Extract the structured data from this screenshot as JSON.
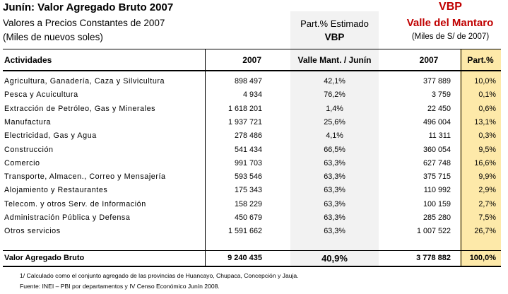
{
  "title": "Junín: Valor Agregado Bruto 2007",
  "subtitle1": "Valores a Precios Constantes de 2007",
  "subtitle2": "(Miles de nuevos soles)",
  "part_est_line1": "Part.% Estimado",
  "part_est_line2": "VBP",
  "vbp_title": "VBP",
  "vbp_region": "Valle del Mantaro",
  "vbp_units": "(Miles de S/ de 2007)",
  "table": {
    "col_actividades": "Actividades",
    "col_2007": "2007",
    "col_valle": "Valle Mant. / Junín",
    "col_2007b": "2007",
    "col_part": "Part.%",
    "rows": [
      {
        "act": "Agricultura, Ganadería, Caza y Silvicultura",
        "v2007": "898 497",
        "pct": "42,1%",
        "vbp": "377 889",
        "part": "10,0%"
      },
      {
        "act": "Pesca y Acuicultura",
        "v2007": "4 934",
        "pct": "76,2%",
        "vbp": "3 759",
        "part": "0,1%"
      },
      {
        "act": "Extracción de Petróleo, Gas y Minerales",
        "v2007": "1 618 201",
        "pct": "1,4%",
        "vbp": "22 450",
        "part": "0,6%"
      },
      {
        "act": "Manufactura",
        "v2007": "1 937 721",
        "pct": "25,6%",
        "vbp": "496 004",
        "part": "13,1%"
      },
      {
        "act": "Electricidad, Gas y Agua",
        "v2007": "278 486",
        "pct": "4,1%",
        "vbp": "11 311",
        "part": "0,3%"
      },
      {
        "act": "Construcción",
        "v2007": "541 434",
        "pct": "66,5%",
        "vbp": "360 054",
        "part": "9,5%"
      },
      {
        "act": "Comercio",
        "v2007": "991 703",
        "pct": "63,3%",
        "vbp": "627 748",
        "part": "16,6%"
      },
      {
        "act": "Transporte, Almacen., Correo y Mensajería",
        "v2007": "593 546",
        "pct": "63,3%",
        "vbp": "375 715",
        "part": "9,9%"
      },
      {
        "act": "Alojamiento y Restaurantes",
        "v2007": "175 343",
        "pct": "63,3%",
        "vbp": "110 992",
        "part": "2,9%"
      },
      {
        "act": "Telecom. y otros Serv. de Información",
        "v2007": "158 229",
        "pct": "63,3%",
        "vbp": "100 159",
        "part": "2,7%"
      },
      {
        "act": "Administración Pública y Defensa",
        "v2007": "450 679",
        "pct": "63,3%",
        "vbp": "285 280",
        "part": "7,5%"
      },
      {
        "act": "Otros servicios",
        "v2007": "1 591 662",
        "pct": "63,3%",
        "vbp": "1 007 522",
        "part": "26,7%"
      }
    ],
    "total": {
      "act": "Valor Agregado Bruto",
      "v2007": "9 240 435",
      "pct": "40,9%",
      "vbp": "3 778 882",
      "part": "100,0%"
    }
  },
  "footnote1": "1/ Calculado como el conjunto agregado de las provincias de Huancayo, Chupaca, Concepción y Jauja.",
  "footnote2": "Fuente: INEI – PBI por departamentos y IV Censo Económico Junín 2008."
}
